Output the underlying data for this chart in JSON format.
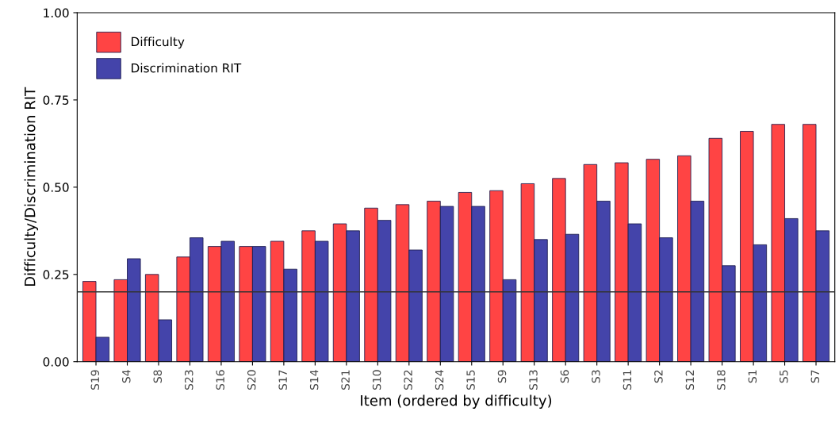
{
  "chart_data": {
    "type": "bar",
    "xlabel": "Item (ordered by difficulty)",
    "ylabel": "Difficulty/Discrimination RIT",
    "categories": [
      "S19",
      "S4",
      "S8",
      "S23",
      "S16",
      "S20",
      "S17",
      "S14",
      "S21",
      "S10",
      "S22",
      "S24",
      "S15",
      "S9",
      "S13",
      "S6",
      "S3",
      "S11",
      "S2",
      "S12",
      "S18",
      "S1",
      "S5",
      "S7"
    ],
    "series": [
      {
        "name": "Difficulty",
        "color": "#ff4444",
        "values": [
          0.23,
          0.235,
          0.25,
          0.3,
          0.33,
          0.33,
          0.345,
          0.375,
          0.395,
          0.44,
          0.45,
          0.46,
          0.485,
          0.49,
          0.51,
          0.525,
          0.565,
          0.57,
          0.58,
          0.59,
          0.64,
          0.66,
          0.68,
          0.68
        ]
      },
      {
        "name": "Discrimination RIT",
        "color": "#4444aa",
        "values": [
          0.07,
          0.295,
          0.12,
          0.355,
          0.345,
          0.33,
          0.265,
          0.345,
          0.375,
          0.405,
          0.32,
          0.445,
          0.445,
          0.235,
          0.35,
          0.365,
          0.46,
          0.395,
          0.355,
          0.46,
          0.275,
          0.335,
          0.41,
          0.375
        ]
      }
    ],
    "ylim": [
      0,
      1
    ],
    "yticks": [
      {
        "value": 0,
        "label": "0.00"
      },
      {
        "value": 0.25,
        "label": "0.25"
      },
      {
        "value": 0.5,
        "label": "0.50"
      },
      {
        "value": 0.75,
        "label": "0.75"
      },
      {
        "value": 1,
        "label": "1.00"
      }
    ],
    "ref_lines": [
      {
        "axis": "y",
        "value": 0.2,
        "color": "#333333"
      }
    ],
    "legend": "top left",
    "grid": false
  }
}
